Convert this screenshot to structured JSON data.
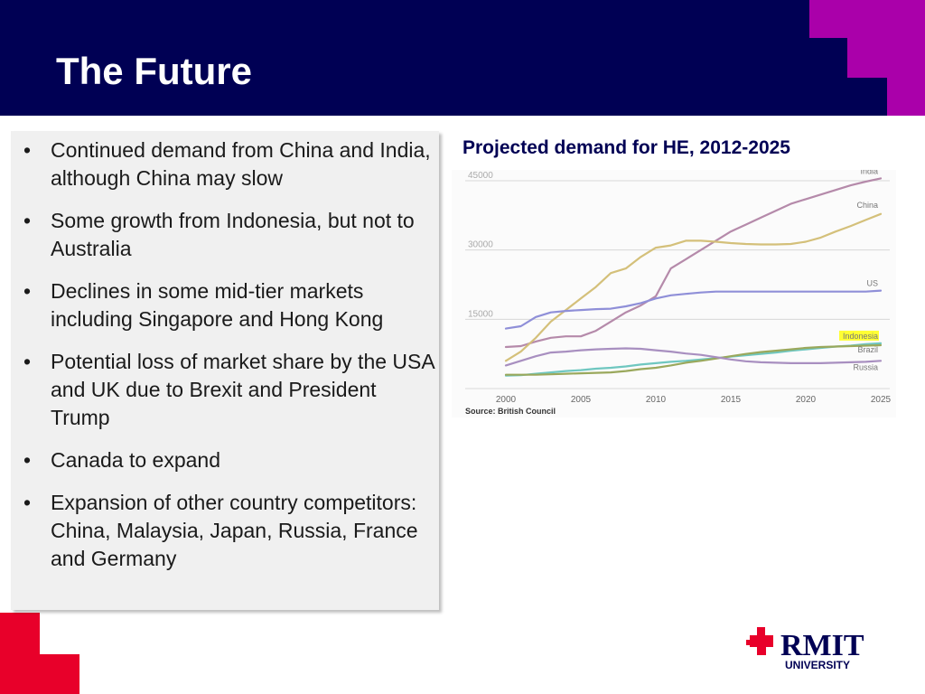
{
  "slide": {
    "title": "The Future"
  },
  "bullets": [
    "Continued demand from China and India, although China may slow",
    "Some growth from Indonesia, but not to Australia",
    "Declines in some mid-tier markets including Singapore and Hong Kong",
    "Potential loss of market share by the USA and UK due to Brexit and President Trump",
    "Canada to expand",
    "Expansion of other country competitors: China, Malaysia, Japan, Russia, France and Germany"
  ],
  "bullet_symbol": "•",
  "chart_heading": "Projected demand for HE, 2012-2025",
  "chart_source": "Source: British Council",
  "logo": {
    "name": "RMIT",
    "sub": "UNIVERSITY"
  },
  "colors": {
    "header": "#000054",
    "accent_magenta": "#aa00aa",
    "accent_red": "#e8002a",
    "panel": "#f0f0f0",
    "india": "#b58aaa",
    "china": "#d4c07a",
    "us": "#8f8fd8",
    "indonesia": "#6fc7c0",
    "brazil": "#9aa85c",
    "russia": "#a88fc0",
    "indonesia_highlight": "#ffff33"
  },
  "chart_data": {
    "type": "line",
    "title": "",
    "xlabel": "",
    "ylabel": "",
    "x_ticks": [
      2000,
      2005,
      2010,
      2015,
      2020,
      2025
    ],
    "y_ticks": [
      15000,
      30000,
      45000
    ],
    "xlim": [
      2000,
      2025
    ],
    "ylim": [
      0,
      45000
    ],
    "grid": true,
    "series": [
      {
        "name": "India",
        "color": "#b58aaa",
        "x": [
          2000,
          2001,
          2002,
          2003,
          2004,
          2005,
          2006,
          2007,
          2008,
          2009,
          2010,
          2011,
          2012,
          2013,
          2014,
          2015,
          2016,
          2017,
          2018,
          2019,
          2020,
          2021,
          2022,
          2023,
          2024,
          2025
        ],
        "y": [
          9000,
          9200,
          10200,
          11000,
          11300,
          11300,
          12500,
          14500,
          16500,
          18000,
          20000,
          26000,
          28000,
          30000,
          32000,
          34000,
          35500,
          37000,
          38500,
          40000,
          41000,
          42000,
          43000,
          44000,
          44800,
          45500
        ]
      },
      {
        "name": "China",
        "color": "#d4c07a",
        "x": [
          2000,
          2001,
          2002,
          2003,
          2004,
          2005,
          2006,
          2007,
          2008,
          2009,
          2010,
          2011,
          2012,
          2013,
          2014,
          2015,
          2016,
          2017,
          2018,
          2019,
          2020,
          2021,
          2022,
          2023,
          2024,
          2025
        ],
        "y": [
          6000,
          8000,
          11000,
          14500,
          17000,
          19500,
          22000,
          25000,
          26000,
          28500,
          30500,
          31000,
          32000,
          32000,
          31800,
          31500,
          31300,
          31200,
          31200,
          31300,
          31800,
          32700,
          34000,
          35200,
          36500,
          37800
        ]
      },
      {
        "name": "US",
        "color": "#8f8fd8",
        "x": [
          2000,
          2001,
          2002,
          2003,
          2004,
          2005,
          2006,
          2007,
          2008,
          2009,
          2010,
          2011,
          2012,
          2013,
          2014,
          2015,
          2016,
          2017,
          2018,
          2019,
          2020,
          2021,
          2022,
          2023,
          2024,
          2025
        ],
        "y": [
          13000,
          13500,
          15500,
          16500,
          16800,
          17000,
          17200,
          17300,
          17800,
          18500,
          19500,
          20200,
          20500,
          20800,
          21000,
          21000,
          21000,
          21000,
          21000,
          21000,
          21000,
          21000,
          21000,
          21000,
          21000,
          21200
        ]
      },
      {
        "name": "Indonesia",
        "color": "#6fc7c0",
        "x": [
          2000,
          2001,
          2002,
          2003,
          2004,
          2005,
          2006,
          2007,
          2008,
          2009,
          2010,
          2011,
          2012,
          2013,
          2014,
          2015,
          2016,
          2017,
          2018,
          2019,
          2020,
          2021,
          2022,
          2023,
          2024,
          2025
        ],
        "y": [
          2800,
          2900,
          3200,
          3500,
          3800,
          4000,
          4300,
          4500,
          4800,
          5200,
          5500,
          5800,
          6000,
          6300,
          6600,
          6900,
          7200,
          7500,
          7800,
          8200,
          8500,
          8800,
          9100,
          9300,
          9600,
          9800
        ]
      },
      {
        "name": "Brazil",
        "color": "#9aa85c",
        "x": [
          2000,
          2001,
          2002,
          2003,
          2004,
          2005,
          2006,
          2007,
          2008,
          2009,
          2010,
          2011,
          2012,
          2013,
          2014,
          2015,
          2016,
          2017,
          2018,
          2019,
          2020,
          2021,
          2022,
          2023,
          2024,
          2025
        ],
        "y": [
          3000,
          3000,
          3000,
          3100,
          3200,
          3300,
          3400,
          3500,
          3800,
          4200,
          4500,
          5000,
          5600,
          6000,
          6500,
          7000,
          7500,
          7900,
          8200,
          8500,
          8800,
          9000,
          9100,
          9200,
          9300,
          9400
        ]
      },
      {
        "name": "Russia",
        "color": "#a88fc0",
        "x": [
          2000,
          2001,
          2002,
          2003,
          2004,
          2005,
          2006,
          2007,
          2008,
          2009,
          2010,
          2011,
          2012,
          2013,
          2014,
          2015,
          2016,
          2017,
          2018,
          2019,
          2020,
          2021,
          2022,
          2023,
          2024,
          2025
        ],
        "y": [
          5000,
          6000,
          7000,
          7800,
          8000,
          8300,
          8500,
          8600,
          8700,
          8600,
          8300,
          8000,
          7600,
          7300,
          6800,
          6300,
          5900,
          5700,
          5600,
          5500,
          5500,
          5500,
          5600,
          5700,
          5800,
          6000
        ]
      }
    ]
  }
}
